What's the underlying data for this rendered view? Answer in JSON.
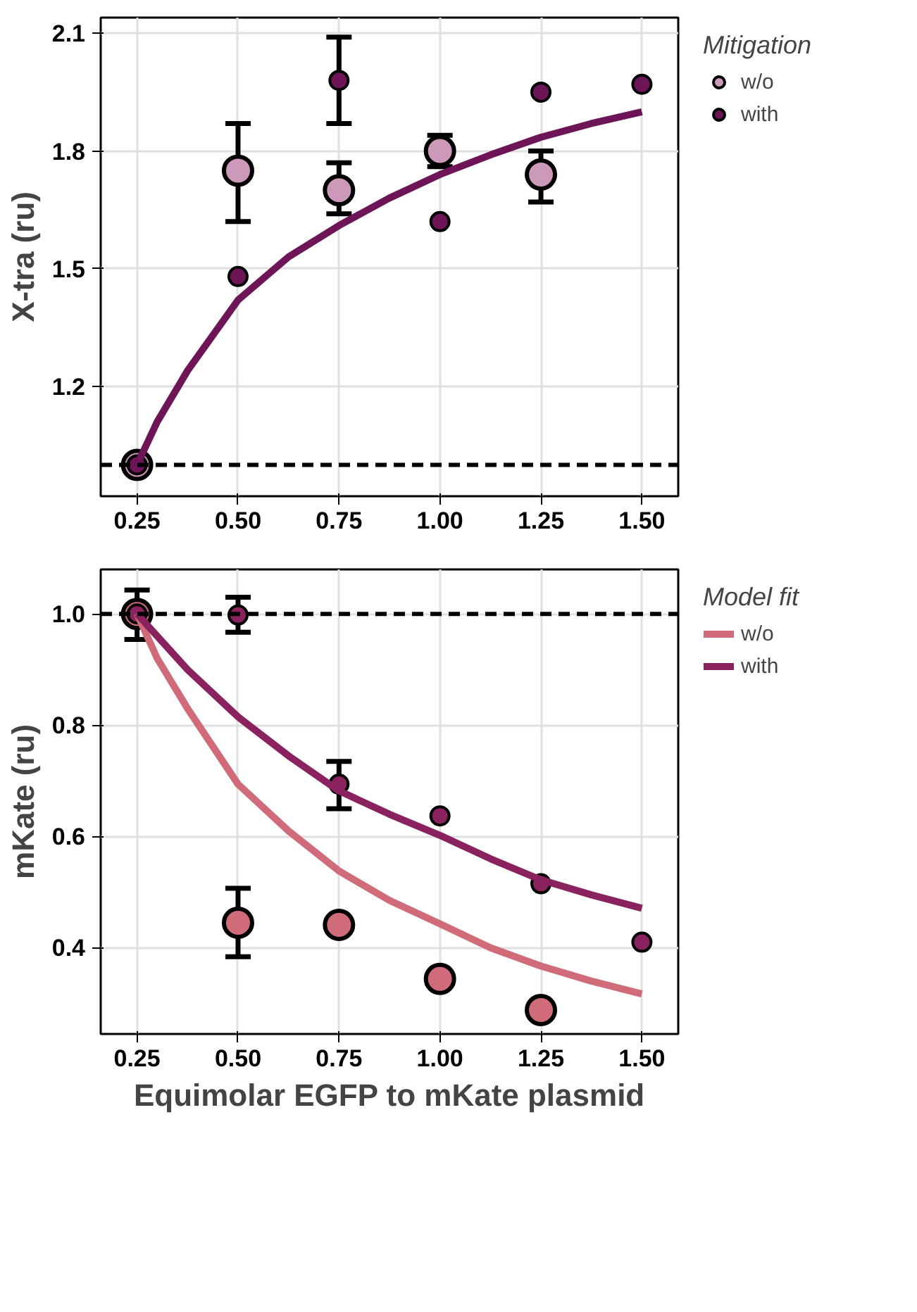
{
  "chart_data": [
    {
      "type": "scatter",
      "ylabel": "X-tra (ru)",
      "legend_title": "Mitigation",
      "legend": "right",
      "grid": true,
      "marker": "circle",
      "xlim": [
        0.16,
        1.59
      ],
      "ylim": [
        0.92,
        2.14
      ],
      "xticks": [
        0.25,
        {
          "value": 0.5,
          "label": "0.50"
        },
        0.75,
        {
          "value": 1.0,
          "label": "1.00"
        },
        1.25,
        {
          "value": 1.5,
          "label": "1.50"
        }
      ],
      "yticks": [
        1.2,
        1.5,
        1.8,
        2.1
      ],
      "ref_lines": [
        {
          "axis": "y",
          "value": 1.0,
          "label": null,
          "line_style": "dashed",
          "color": "#000000"
        }
      ],
      "series": [
        {
          "type": "line",
          "marker": "none",
          "color": "#6e1558",
          "x": [
            0.25,
            0.3,
            0.375,
            0.5,
            0.625,
            0.75,
            0.875,
            1.0,
            1.125,
            1.25,
            1.375,
            1.5
          ],
          "values": [
            1.0,
            1.11,
            1.24,
            1.42,
            1.53,
            1.61,
            1.68,
            1.74,
            1.79,
            1.835,
            1.87,
            1.9
          ],
          "line_style": "solid"
        },
        {
          "name": "w/o",
          "color": "#cc99bb",
          "x": [
            0.25,
            0.5,
            0.75,
            1.0,
            1.25
          ],
          "values": [
            1.0,
            1.75,
            1.7,
            1.8,
            1.74
          ],
          "errors": [
            null,
            [
              1.62,
              1.87
            ],
            [
              1.64,
              1.77
            ],
            [
              1.76,
              1.84
            ],
            [
              1.67,
              1.8
            ]
          ]
        },
        {
          "name": "with",
          "color": "#6e1558",
          "x": [
            0.25,
            0.5,
            0.75,
            1.0,
            1.25,
            1.5
          ],
          "values": [
            1.0,
            1.48,
            1.98,
            1.62,
            1.95,
            1.97
          ],
          "errors": [
            null,
            null,
            [
              1.87,
              2.09
            ],
            null,
            null,
            null
          ]
        }
      ]
    },
    {
      "type": "scatter",
      "xlabel": "Equimolar EGFP to mKate plasmid",
      "ylabel": "mKate (ru)",
      "legend_title": "Model fit",
      "legend": "right",
      "grid": true,
      "marker": "circle",
      "xlim": [
        0.16,
        1.59
      ],
      "ylim": [
        0.245,
        1.08
      ],
      "xticks": [
        0.25,
        {
          "value": 0.5,
          "label": "0.50"
        },
        0.75,
        {
          "value": 1.0,
          "label": "1.00"
        },
        1.25,
        {
          "value": 1.5,
          "label": "1.50"
        }
      ],
      "yticks": [
        0.4,
        0.6,
        0.8,
        {
          "value": 1.0,
          "label": "1.0"
        }
      ],
      "ref_lines": [
        {
          "axis": "y",
          "value": 1.0,
          "label": null,
          "line_style": "dashed",
          "color": "#000000"
        }
      ],
      "series": [
        {
          "type": "line",
          "marker": "none",
          "name": "w/o",
          "color": "#d06b7a",
          "x": [
            0.25,
            0.3,
            0.375,
            0.5,
            0.625,
            0.75,
            0.875,
            1.0,
            1.125,
            1.25,
            1.375,
            1.5
          ],
          "values": [
            1.0,
            0.92,
            0.83,
            0.694,
            0.61,
            0.538,
            0.485,
            0.443,
            0.4,
            0.367,
            0.34,
            0.317
          ],
          "line_style": "solid"
        },
        {
          "type": "line",
          "marker": "none",
          "name": "with",
          "color": "#8a2260",
          "x": [
            0.25,
            0.3,
            0.375,
            0.5,
            0.625,
            0.75,
            0.875,
            1.0,
            1.125,
            1.25,
            1.375,
            1.5
          ],
          "values": [
            1.0,
            0.96,
            0.9,
            0.815,
            0.745,
            0.682,
            0.64,
            0.602,
            0.56,
            0.522,
            0.495,
            0.471
          ],
          "line_style": "solid"
        },
        {
          "color": "#d06b7a",
          "x": [
            0.25,
            0.5,
            0.75,
            1.0,
            1.25
          ],
          "values": [
            1.0,
            0.445,
            0.441,
            0.344,
            0.288
          ],
          "errors": [
            [
              0.954,
              1.043
            ],
            [
              0.384,
              0.507
            ],
            null,
            null,
            null
          ]
        },
        {
          "color": "#8a2260",
          "x": [
            0.25,
            0.5,
            0.75,
            1.0,
            1.25,
            1.5
          ],
          "values": [
            1.0,
            0.998,
            0.694,
            0.637,
            0.515,
            0.41
          ],
          "errors": [
            null,
            [
              0.967,
              1.03
            ],
            [
              0.65,
              0.735
            ],
            null,
            null,
            null
          ]
        }
      ]
    }
  ]
}
